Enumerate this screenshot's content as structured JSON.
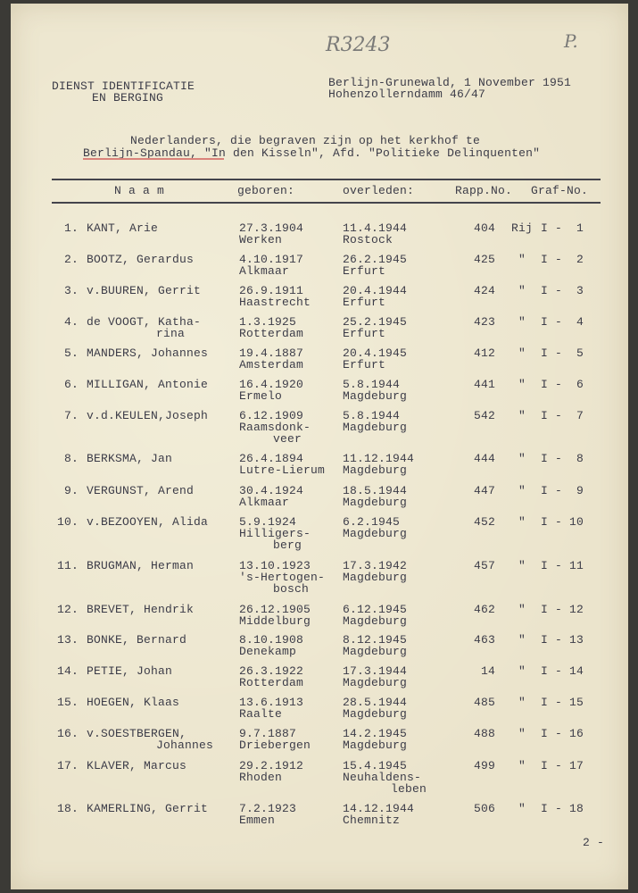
{
  "handwritten": {
    "ref": "R3243",
    "page_mark": "P."
  },
  "header": {
    "org_line1": "DIENST IDENTIFICATIE",
    "org_line2": "EN BERGING",
    "place_date": "Berlijn-Grunewald, 1 November 1951",
    "address": "Hohenzollerndamm 46/47"
  },
  "title": {
    "line1": "Nederlanders, die begraven zijn op het kerkhof te",
    "line2": "Berlijn-Spandau, \"In den Kisseln\", Afd. \"Politieke Delinquenten\""
  },
  "columns": {
    "name": "N a a m",
    "born": "geboren:",
    "died": "overleden:",
    "rapp": "Rapp.No.",
    "graf": "Graf-No."
  },
  "rows": [
    {
      "no": "1.",
      "name": "KANT, Arie",
      "name2": "",
      "born": "27.3.1904",
      "born_place": "Werken",
      "born_place2": "",
      "died": "11.4.1944",
      "died_place": "Rostock",
      "died_place2": "",
      "rapp": "404",
      "ditto": "Rij",
      "graf": "I -  1"
    },
    {
      "no": "2.",
      "name": "BOOTZ, Gerardus",
      "name2": "",
      "born": "4.10.1917",
      "born_place": "Alkmaar",
      "born_place2": "",
      "died": "26.2.1945",
      "died_place": "Erfurt",
      "died_place2": "",
      "rapp": "425",
      "ditto": "\"",
      "graf": "I -  2"
    },
    {
      "no": "3.",
      "name": "v.BUUREN, Gerrit",
      "name2": "",
      "born": "26.9.1911",
      "born_place": "Haastrecht",
      "born_place2": "",
      "died": "20.4.1944",
      "died_place": "Erfurt",
      "died_place2": "",
      "rapp": "424",
      "ditto": "\"",
      "graf": "I -  3"
    },
    {
      "no": "4.",
      "name": "de VOOGT, Katha-",
      "name2": "rina",
      "born": "1.3.1925",
      "born_place": "Rotterdam",
      "born_place2": "",
      "died": "25.2.1945",
      "died_place": "Erfurt",
      "died_place2": "",
      "rapp": "423",
      "ditto": "\"",
      "graf": "I -  4"
    },
    {
      "no": "5.",
      "name": "MANDERS, Johannes",
      "name2": "",
      "born": "19.4.1887",
      "born_place": "Amsterdam",
      "born_place2": "",
      "died": "20.4.1945",
      "died_place": "Erfurt",
      "died_place2": "",
      "rapp": "412",
      "ditto": "\"",
      "graf": "I -  5"
    },
    {
      "no": "6.",
      "name": "MILLIGAN, Antonie",
      "name2": "",
      "born": "16.4.1920",
      "born_place": "Ermelo",
      "born_place2": "",
      "died": "5.8.1944",
      "died_place": "Magdeburg",
      "died_place2": "",
      "rapp": "441",
      "ditto": "\"",
      "graf": "I -  6"
    },
    {
      "no": "7.",
      "name": "v.d.KEULEN,Joseph",
      "name2": "",
      "born": "6.12.1909",
      "born_place": "Raamsdonk-",
      "born_place2": "veer",
      "died": "5.8.1944",
      "died_place": "Magdeburg",
      "died_place2": "",
      "rapp": "542",
      "ditto": "\"",
      "graf": "I -  7"
    },
    {
      "no": "8.",
      "name": "BERKSMA, Jan",
      "name2": "",
      "born": "26.4.1894",
      "born_place": "Lutre-Lierum",
      "born_place2": "",
      "died": "11.12.1944",
      "died_place": "Magdeburg",
      "died_place2": "",
      "rapp": "444",
      "ditto": "\"",
      "graf": "I -  8"
    },
    {
      "no": "9.",
      "name": "VERGUNST, Arend",
      "name2": "",
      "born": "30.4.1924",
      "born_place": "Alkmaar",
      "born_place2": "",
      "died": "18.5.1944",
      "died_place": "Magdeburg",
      "died_place2": "",
      "rapp": "447",
      "ditto": "\"",
      "graf": "I -  9"
    },
    {
      "no": "10.",
      "name": "v.BEZOOYEN, Alida",
      "name2": "",
      "born": "5.9.1924",
      "born_place": "Hilligers-",
      "born_place2": "berg",
      "died": "6.2.1945",
      "died_place": "Magdeburg",
      "died_place2": "",
      "rapp": "452",
      "ditto": "\"",
      "graf": "I - 10"
    },
    {
      "no": "11.",
      "name": "BRUGMAN, Herman",
      "name2": "",
      "born": "13.10.1923",
      "born_place": "'s-Hertogen-",
      "born_place2": "bosch",
      "died": "17.3.1942",
      "died_place": "Magdeburg",
      "died_place2": "",
      "rapp": "457",
      "ditto": "\"",
      "graf": "I - 11"
    },
    {
      "no": "12.",
      "name": "BREVET, Hendrik",
      "name2": "",
      "born": "26.12.1905",
      "born_place": "Middelburg",
      "born_place2": "",
      "died": "6.12.1945",
      "died_place": "Magdeburg",
      "died_place2": "",
      "rapp": "462",
      "ditto": "\"",
      "graf": "I - 12"
    },
    {
      "no": "13.",
      "name": "BONKE, Bernard",
      "name2": "",
      "born": "8.10.1908",
      "born_place": "Denekamp",
      "born_place2": "",
      "died": "8.12.1945",
      "died_place": "Magdeburg",
      "died_place2": "",
      "rapp": "463",
      "ditto": "\"",
      "graf": "I - 13"
    },
    {
      "no": "14.",
      "name": "PETIE, Johan",
      "name2": "",
      "born": "26.3.1922",
      "born_place": "Rotterdam",
      "born_place2": "",
      "died": "17.3.1944",
      "died_place": "Magdeburg",
      "died_place2": "",
      "rapp": "14",
      "ditto": "\"",
      "graf": "I - 14"
    },
    {
      "no": "15.",
      "name": "HOEGEN, Klaas",
      "name2": "",
      "born": "13.6.1913",
      "born_place": "Raalte",
      "born_place2": "",
      "died": "28.5.1944",
      "died_place": "Magdeburg",
      "died_place2": "",
      "rapp": "485",
      "ditto": "\"",
      "graf": "I - 15"
    },
    {
      "no": "16.",
      "name": "v.SOESTBERGEN,",
      "name2": "Johannes",
      "born": "9.7.1887",
      "born_place": "Driebergen",
      "born_place2": "",
      "died": "14.2.1945",
      "died_place": "Magdeburg",
      "died_place2": "",
      "rapp": "488",
      "ditto": "\"",
      "graf": "I - 16"
    },
    {
      "no": "17.",
      "name": "KLAVER, Marcus",
      "name2": "",
      "born": "29.2.1912",
      "born_place": "Rhoden",
      "born_place2": "",
      "died": "15.4.1945",
      "died_place": "Neuhaldens-",
      "died_place2": "leben",
      "rapp": "499",
      "ditto": "\"",
      "graf": "I - 17"
    },
    {
      "no": "18.",
      "name": "KAMERLING, Gerrit",
      "name2": "",
      "born": "7.2.1923",
      "born_place": "Emmen",
      "born_place2": "",
      "died": "14.12.1944",
      "died_place": "Chemnitz",
      "died_place2": "",
      "rapp": "506",
      "ditto": "\"",
      "graf": "I - 18"
    }
  ],
  "footer": {
    "continued": "2 -"
  }
}
